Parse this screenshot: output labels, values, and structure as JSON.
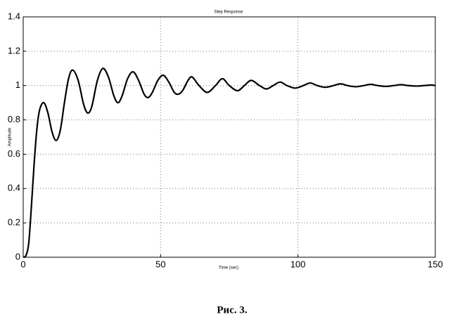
{
  "chart_data": {
    "type": "line",
    "title": "Step Response",
    "x_label": "Time (sec)",
    "y_label": "Amplitude",
    "caption": "Рис. 3.",
    "x": [
      0,
      1,
      2,
      3,
      4,
      5,
      6,
      7.5,
      9,
      10.5,
      12,
      13.5,
      15,
      16.5,
      18,
      20,
      22,
      23.5,
      25,
      27,
      29,
      31,
      33,
      34.5,
      36,
      38,
      40,
      42,
      44,
      45.5,
      47,
      49,
      51,
      53,
      55,
      56.5,
      58,
      60,
      61.5,
      64,
      67,
      70,
      72.5,
      75,
      78,
      80.5,
      83,
      86,
      88.5,
      91,
      93.5,
      96,
      99,
      102,
      104.5,
      107,
      110,
      113,
      115.5,
      118,
      121,
      124,
      126.5,
      129,
      132,
      135,
      137.5,
      140,
      143,
      146,
      148.5,
      150
    ],
    "series": [
      {
        "name": "Step Response",
        "color": "#000000",
        "values": [
          0,
          0.01,
          0.08,
          0.3,
          0.55,
          0.75,
          0.86,
          0.9,
          0.84,
          0.73,
          0.68,
          0.74,
          0.9,
          1.04,
          1.09,
          1.03,
          0.89,
          0.84,
          0.88,
          1.03,
          1.1,
          1.05,
          0.94,
          0.9,
          0.94,
          1.04,
          1.08,
          1.03,
          0.95,
          0.93,
          0.96,
          1.03,
          1.06,
          1.02,
          0.96,
          0.95,
          0.97,
          1.03,
          1.05,
          1.0,
          0.96,
          1.0,
          1.04,
          1.0,
          0.97,
          1.0,
          1.03,
          1.0,
          0.98,
          1.0,
          1.02,
          1.0,
          0.985,
          1.0,
          1.015,
          1.0,
          0.99,
          1.0,
          1.01,
          1.0,
          0.993,
          1.0,
          1.007,
          1.0,
          0.995,
          1.0,
          1.005,
          1.0,
          0.997,
          1.0,
          1.003,
          1.0
        ]
      }
    ],
    "xlim": [
      0,
      150
    ],
    "ylim": [
      0,
      1.4
    ],
    "xticks": [
      0,
      50,
      100,
      150
    ],
    "yticks": [
      0,
      0.2,
      0.4,
      0.6,
      0.8,
      1,
      1.2,
      1.4
    ],
    "grid": true
  }
}
